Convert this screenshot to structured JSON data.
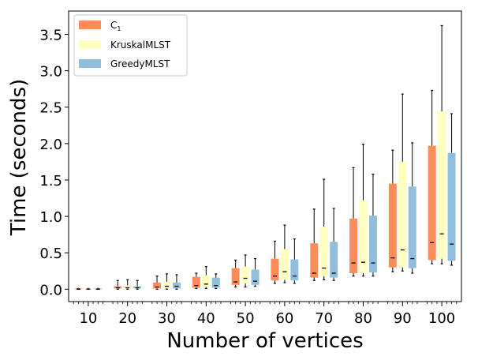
{
  "chart_data": {
    "type": "box",
    "title": "",
    "xlabel": "Number of vertices",
    "ylabel": "Time (seconds)",
    "ylim": [
      -0.17,
      3.82
    ],
    "xlim": [
      0.5,
      10.5
    ],
    "yticks": [
      0.0,
      0.5,
      1.0,
      1.5,
      2.0,
      2.5,
      3.0,
      3.5
    ],
    "ytick_labels": [
      "0.0",
      "0.5",
      "1.0",
      "1.5",
      "2.0",
      "2.5",
      "3.0",
      "3.5"
    ],
    "categories": [
      "10",
      "20",
      "30",
      "40",
      "50",
      "60",
      "70",
      "80",
      "90",
      "100"
    ],
    "legend": {
      "position": "top-left",
      "entries": [
        {
          "label": "C",
          "subscript": "1",
          "color": "#fc8d59"
        },
        {
          "label": "KruskalMLST",
          "color": "#ffffbf"
        },
        {
          "label": "GreedyMLST",
          "color": "#91bfdb"
        }
      ]
    },
    "series": [
      {
        "name": "C1",
        "color": "#fc8d59",
        "boxes": [
          {
            "min": 0.0,
            "q1": 0.0,
            "median": 0.0,
            "q3": 0.01,
            "max": 0.01
          },
          {
            "min": 0.0,
            "q1": 0.01,
            "median": 0.02,
            "q3": 0.04,
            "max": 0.12
          },
          {
            "min": 0.0,
            "q1": 0.01,
            "median": 0.03,
            "q3": 0.09,
            "max": 0.18
          },
          {
            "min": 0.01,
            "q1": 0.02,
            "median": 0.05,
            "q3": 0.17,
            "max": 0.22
          },
          {
            "min": 0.03,
            "q1": 0.06,
            "median": 0.1,
            "q3": 0.29,
            "max": 0.4
          },
          {
            "min": 0.08,
            "q1": 0.12,
            "median": 0.18,
            "q3": 0.42,
            "max": 0.66
          },
          {
            "min": 0.12,
            "q1": 0.16,
            "median": 0.22,
            "q3": 0.63,
            "max": 1.1
          },
          {
            "min": 0.18,
            "q1": 0.22,
            "median": 0.36,
            "q3": 0.97,
            "max": 1.67
          },
          {
            "min": 0.24,
            "q1": 0.3,
            "median": 0.43,
            "q3": 1.45,
            "max": 1.91
          },
          {
            "min": 0.35,
            "q1": 0.4,
            "median": 0.64,
            "q3": 1.97,
            "max": 2.73
          }
        ]
      },
      {
        "name": "KruskalMLST",
        "color": "#ffffbf",
        "boxes": [
          {
            "min": 0.0,
            "q1": 0.0,
            "median": 0.0,
            "q3": 0.01,
            "max": 0.01
          },
          {
            "min": 0.0,
            "q1": 0.01,
            "median": 0.02,
            "q3": 0.05,
            "max": 0.13
          },
          {
            "min": 0.0,
            "q1": 0.01,
            "median": 0.04,
            "q3": 0.1,
            "max": 0.21
          },
          {
            "min": 0.01,
            "q1": 0.03,
            "median": 0.07,
            "q3": 0.19,
            "max": 0.31
          },
          {
            "min": 0.03,
            "q1": 0.08,
            "median": 0.15,
            "q3": 0.31,
            "max": 0.47
          },
          {
            "min": 0.09,
            "q1": 0.13,
            "median": 0.24,
            "q3": 0.55,
            "max": 0.88
          },
          {
            "min": 0.13,
            "q1": 0.18,
            "median": 0.29,
            "q3": 0.86,
            "max": 1.51
          },
          {
            "min": 0.18,
            "q1": 0.22,
            "median": 0.37,
            "q3": 1.22,
            "max": 1.99
          },
          {
            "min": 0.25,
            "q1": 0.3,
            "median": 0.54,
            "q3": 1.75,
            "max": 2.68
          },
          {
            "min": 0.35,
            "q1": 0.42,
            "median": 0.76,
            "q3": 2.44,
            "max": 3.62
          }
        ]
      },
      {
        "name": "GreedyMLST",
        "color": "#91bfdb",
        "boxes": [
          {
            "min": 0.0,
            "q1": 0.0,
            "median": 0.0,
            "q3": 0.01,
            "max": 0.01
          },
          {
            "min": 0.0,
            "q1": 0.01,
            "median": 0.02,
            "q3": 0.04,
            "max": 0.12
          },
          {
            "min": 0.0,
            "q1": 0.01,
            "median": 0.04,
            "q3": 0.09,
            "max": 0.2
          },
          {
            "min": 0.01,
            "q1": 0.02,
            "median": 0.05,
            "q3": 0.16,
            "max": 0.21
          },
          {
            "min": 0.04,
            "q1": 0.06,
            "median": 0.11,
            "q3": 0.27,
            "max": 0.42
          },
          {
            "min": 0.08,
            "q1": 0.12,
            "median": 0.18,
            "q3": 0.41,
            "max": 0.69
          },
          {
            "min": 0.12,
            "q1": 0.16,
            "median": 0.22,
            "q3": 0.65,
            "max": 1.11
          },
          {
            "min": 0.18,
            "q1": 0.23,
            "median": 0.36,
            "q3": 1.01,
            "max": 1.58
          },
          {
            "min": 0.22,
            "q1": 0.29,
            "median": 0.42,
            "q3": 1.41,
            "max": 2.01
          },
          {
            "min": 0.33,
            "q1": 0.39,
            "median": 0.62,
            "q3": 1.87,
            "max": 2.41
          }
        ]
      }
    ]
  }
}
